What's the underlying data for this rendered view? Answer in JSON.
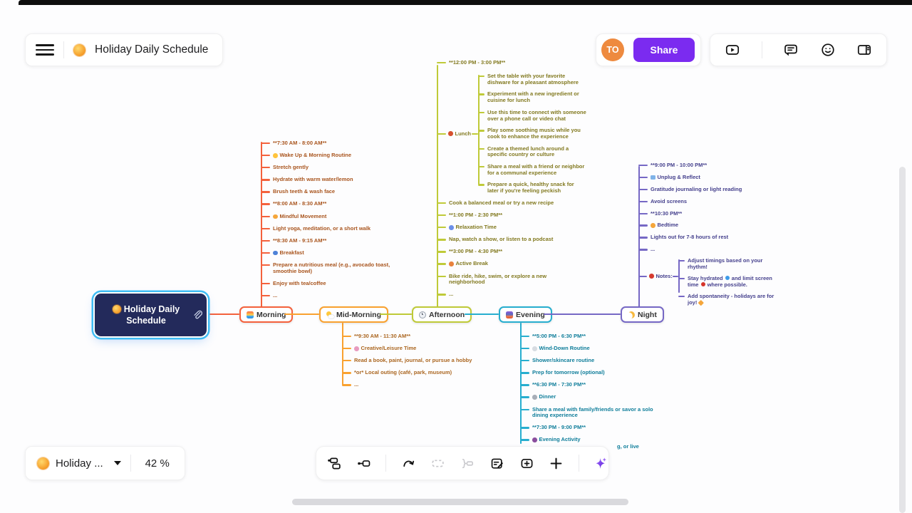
{
  "header": {
    "title": "Holiday Daily Schedule",
    "title_icon": "sun-with-face-emoji",
    "menu_icon": "hamburger-menu"
  },
  "account": {
    "avatar_initials": "TO",
    "avatar_color": "#ee8a3f",
    "share_label": "Share",
    "share_color": "#7b2bf0"
  },
  "view_icons": [
    "video-tutorial",
    "comments",
    "reactions",
    "panel-layout"
  ],
  "doc_switcher": {
    "label": "Holiday ...",
    "icon": "sun-with-face-emoji",
    "zoom_value": "42 %"
  },
  "toolbar": {
    "buttons": [
      "add-sibling-topic",
      "add-child-topic",
      "draw-relationship",
      "summary-disabled",
      "group-disabled",
      "edit-note",
      "insert-element",
      "add-more",
      "ai-assistant"
    ]
  },
  "mindmap": {
    "root": {
      "label": "Holiday Daily Schedule",
      "icon": "sun-with-face-emoji",
      "has_attachment": true,
      "colors": {
        "fill": "#232a5b",
        "ring": "#3fbcf4"
      }
    },
    "branches": [
      {
        "key": "morning",
        "label": "Morning",
        "icon": "sunrise-emoji",
        "colors": {
          "line": "#f4613c",
          "text": "#a9551e"
        },
        "items": [
          {
            "text": "**7:30 AM - 8:00 AM**"
          },
          {
            "icon": "sun",
            "text": "Wake Up & Morning Routine"
          },
          {
            "text": "Stretch gently"
          },
          {
            "text": "Hydrate with warm water/lemon"
          },
          {
            "text": "Brush teeth & wash face"
          },
          {
            "text": "**8:00 AM - 8:30 AM**"
          },
          {
            "icon": "lotus",
            "text": "Mindful Movement"
          },
          {
            "text": "Light yoga, meditation, or a short walk"
          },
          {
            "text": "**8:30 AM - 9:15 AM**"
          },
          {
            "icon": "bowl",
            "text": "Breakfast"
          },
          {
            "text": "Prepare a nutritious meal (e.g., avocado toast, smoothie bowl)"
          },
          {
            "text": "Enjoy with tea/coffee"
          },
          {
            "text": "..."
          }
        ]
      },
      {
        "key": "midmorning",
        "label": "Mid-Morning",
        "icon": "sun-behind-cloud-emoji",
        "colors": {
          "line": "#f9a12f",
          "text": "#ab6620"
        },
        "items": [
          {
            "text": "**9:30 AM - 11:30 AM**"
          },
          {
            "icon": "palette",
            "text": "Creative/Leisure Time"
          },
          {
            "text": "Read a book, paint, journal, or pursue a hobby"
          },
          {
            "text": "*or* Local outing (café, park, museum)"
          },
          {
            "text": "..."
          }
        ]
      },
      {
        "key": "afternoon",
        "label": "Afternoon",
        "icon": "clock-emoji",
        "colors": {
          "line": "#bfca38",
          "text": "#82791f"
        },
        "items_top": [
          {
            "text": "**12:00 PM - 3:00 PM**"
          }
        ],
        "lunch": {
          "label": "Lunch",
          "icon": "pot",
          "items": [
            "Set the table with your favorite dishware for a pleasant atmosphere",
            "Experiment with a new ingredient or cuisine for lunch",
            "Use this time to connect with someone over a phone call or video chat",
            "Play some soothing music while you cook to enhance the experience",
            "Create a themed lunch around a specific country or culture",
            "Share a meal with a friend or neighbor for a communal experience",
            "Prepare a quick, healthy snack for later if you're feeling peckish"
          ]
        },
        "items_bottom": [
          {
            "text": "Cook a balanced meal or try a new recipe"
          },
          {
            "text": "**1:00 PM - 2:30 PM**"
          },
          {
            "icon": "couch",
            "text": "Relaxation Time"
          },
          {
            "text": "Nap, watch a show, or listen to a podcast"
          },
          {
            "text": "**3:00 PM - 4:30 PM**"
          },
          {
            "icon": "walk",
            "text": "Active Break"
          },
          {
            "text": "Bike ride, hike, swim, or explore a new neighborhood"
          },
          {
            "text": "..."
          }
        ]
      },
      {
        "key": "evening",
        "label": "Evening",
        "icon": "cityscape-at-dusk-emoji",
        "colors": {
          "line": "#27aecf",
          "text": "#0e7d9a"
        },
        "items": [
          {
            "text": "**5:00 PM - 6:30 PM**"
          },
          {
            "icon": "shower",
            "text": "Wind-Down Routine"
          },
          {
            "text": "Shower/skincare routine"
          },
          {
            "text": "Prep for tomorrow (optional)"
          },
          {
            "text": "**6:30 PM - 7:30 PM**"
          },
          {
            "icon": "plate",
            "text": "Dinner"
          },
          {
            "text": "Share a meal with family/friends or savor a solo dining experience"
          },
          {
            "text": "**7:30 PM - 9:00 PM**"
          },
          {
            "icon": "game",
            "text": "Evening Activity"
          }
        ],
        "cutoff_fragment": "g, or live"
      },
      {
        "key": "night",
        "label": "Night",
        "icon": "crescent-moon-emoji",
        "colors": {
          "line": "#7668c5",
          "text": "#45408d"
        },
        "items": [
          {
            "text": "**9:00 PM - 10:00 PM**"
          },
          {
            "icon": "book",
            "text": "Unplug & Reflect"
          },
          {
            "text": "Gratitude journaling or light reading"
          },
          {
            "text": "Avoid screens"
          },
          {
            "text": "**10:30 PM**"
          },
          {
            "icon": "sleep",
            "text": "Bedtime"
          },
          {
            "text": "Lights out for 7-8 hours of rest"
          },
          {
            "text": "..."
          }
        ],
        "notes": {
          "label": "Notes:",
          "icon": "pin",
          "items": [
            "Adjust timings based on your rhythm!",
            "Stay hydrated 💧 and limit screen time 📵 where possible.",
            "Add spontaneity - holidays are for joy! ✨"
          ]
        }
      }
    ]
  }
}
